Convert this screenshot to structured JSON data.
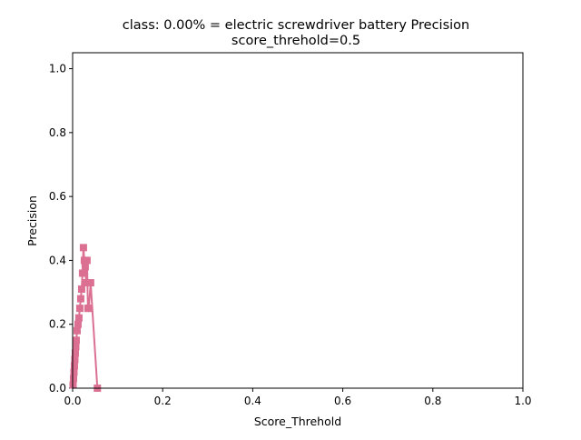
{
  "chart_data": {
    "type": "line",
    "title_line1": "class: 0.00% = electric screwdriver battery Precision",
    "title_line2": "score_threhold=0.5",
    "xlabel": "Score_Threhold",
    "ylabel": "Precision",
    "xlim": [
      0,
      1
    ],
    "ylim": [
      0,
      1.05
    ],
    "x_ticks": [
      {
        "value": 0.0,
        "label": "0.0"
      },
      {
        "value": 0.2,
        "label": "0.2"
      },
      {
        "value": 0.4,
        "label": "0.4"
      },
      {
        "value": 0.6,
        "label": "0.6"
      },
      {
        "value": 0.8,
        "label": "0.8"
      },
      {
        "value": 1.0,
        "label": "1.0"
      }
    ],
    "y_ticks": [
      {
        "value": 0.0,
        "label": "0.0"
      },
      {
        "value": 0.2,
        "label": "0.2"
      },
      {
        "value": 0.4,
        "label": "0.4"
      },
      {
        "value": 0.6,
        "label": "0.6"
      },
      {
        "value": 0.8,
        "label": "0.8"
      },
      {
        "value": 1.0,
        "label": "1.0"
      }
    ],
    "grid": false,
    "legend": "none",
    "series": [
      {
        "color": "#db7093",
        "marker": "square",
        "points": [
          {
            "x": 0.001,
            "y": 0.01
          },
          {
            "x": 0.002,
            "y": 0.03
          },
          {
            "x": 0.003,
            "y": 0.05
          },
          {
            "x": 0.004,
            "y": 0.07
          },
          {
            "x": 0.005,
            "y": 0.09
          },
          {
            "x": 0.006,
            "y": 0.11
          },
          {
            "x": 0.007,
            "y": 0.13
          },
          {
            "x": 0.008,
            "y": 0.15
          },
          {
            "x": 0.01,
            "y": 0.18
          },
          {
            "x": 0.012,
            "y": 0.2
          },
          {
            "x": 0.014,
            "y": 0.22
          },
          {
            "x": 0.016,
            "y": 0.25
          },
          {
            "x": 0.018,
            "y": 0.28
          },
          {
            "x": 0.02,
            "y": 0.31
          },
          {
            "x": 0.022,
            "y": 0.36
          },
          {
            "x": 0.024,
            "y": 0.44
          },
          {
            "x": 0.026,
            "y": 0.4
          },
          {
            "x": 0.028,
            "y": 0.38
          },
          {
            "x": 0.03,
            "y": 0.33
          },
          {
            "x": 0.032,
            "y": 0.4
          },
          {
            "x": 0.034,
            "y": 0.25
          },
          {
            "x": 0.036,
            "y": 0.25
          },
          {
            "x": 0.04,
            "y": 0.33
          },
          {
            "x": 0.055,
            "y": 0.0
          }
        ]
      }
    ]
  }
}
